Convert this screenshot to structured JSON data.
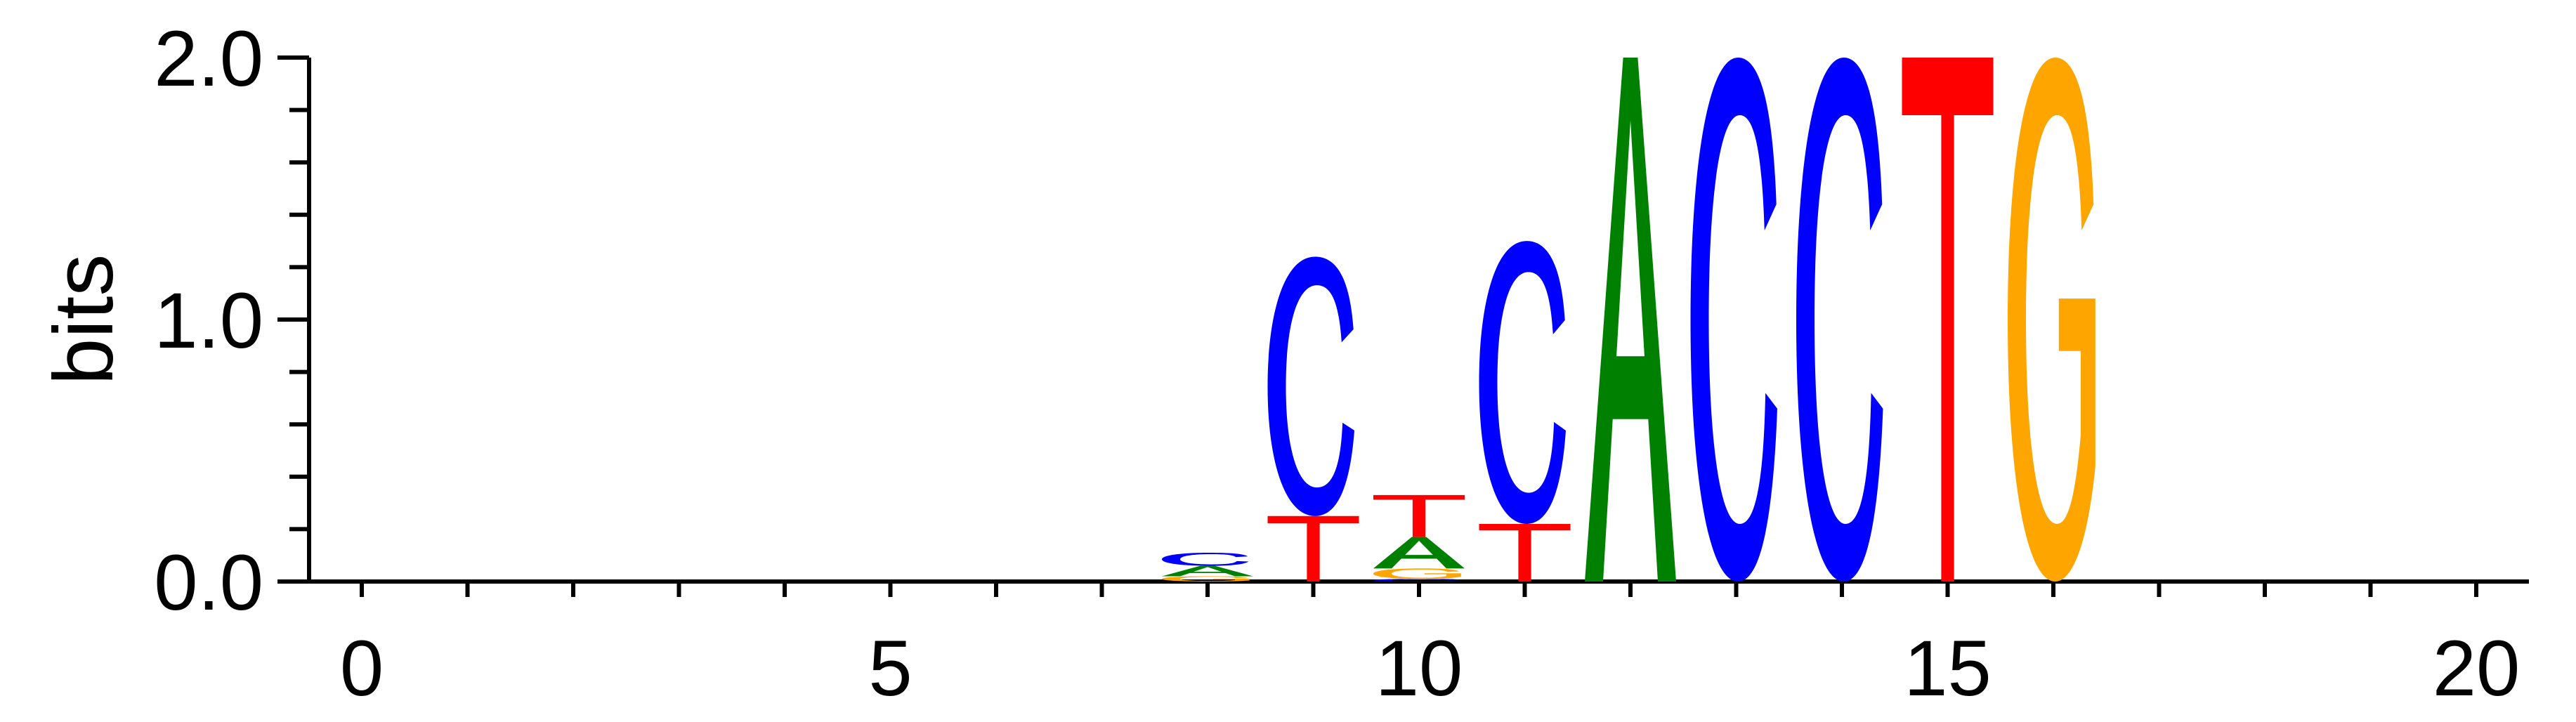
{
  "chart_data": {
    "type": "sequence-logo",
    "ylabel": "bits",
    "xlim": [
      0,
      20
    ],
    "ylim": [
      0,
      2
    ],
    "x_ticks": [
      {
        "value": 0,
        "label": "0"
      },
      {
        "value": 5,
        "label": "5"
      },
      {
        "value": 10,
        "label": "10"
      },
      {
        "value": 15,
        "label": "15"
      },
      {
        "value": 20,
        "label": "20"
      }
    ],
    "y_ticks": [
      {
        "value": 0,
        "label": "0.0"
      },
      {
        "value": 1,
        "label": "1.0"
      },
      {
        "value": 2,
        "label": "2.0"
      }
    ],
    "y_minor_step": 0.2,
    "colors": {
      "A": "#008000",
      "C": "#0000ff",
      "G": "#ffa500",
      "T": "#ff0000"
    },
    "positions": [
      {
        "x": 8,
        "stack": [
          {
            "letter": "G",
            "bits": 0.02
          },
          {
            "letter": "A",
            "bits": 0.04
          },
          {
            "letter": "C",
            "bits": 0.05
          }
        ]
      },
      {
        "x": 9,
        "stack": [
          {
            "letter": "T",
            "bits": 0.25
          },
          {
            "letter": "C",
            "bits": 0.99
          }
        ]
      },
      {
        "x": 10,
        "stack": [
          {
            "letter": "C",
            "bits": 0.01
          },
          {
            "letter": "G",
            "bits": 0.04
          },
          {
            "letter": "A",
            "bits": 0.12
          },
          {
            "letter": "T",
            "bits": 0.16
          }
        ]
      },
      {
        "x": 11,
        "stack": [
          {
            "letter": "T",
            "bits": 0.22
          },
          {
            "letter": "C",
            "bits": 1.08
          }
        ]
      },
      {
        "x": 12,
        "stack": [
          {
            "letter": "A",
            "bits": 2.0
          }
        ]
      },
      {
        "x": 13,
        "stack": [
          {
            "letter": "C",
            "bits": 2.0
          }
        ]
      },
      {
        "x": 14,
        "stack": [
          {
            "letter": "C",
            "bits": 2.0
          }
        ]
      },
      {
        "x": 15,
        "stack": [
          {
            "letter": "T",
            "bits": 2.0
          }
        ]
      },
      {
        "x": 16,
        "stack": [
          {
            "letter": "G",
            "bits": 2.0
          }
        ]
      }
    ]
  }
}
